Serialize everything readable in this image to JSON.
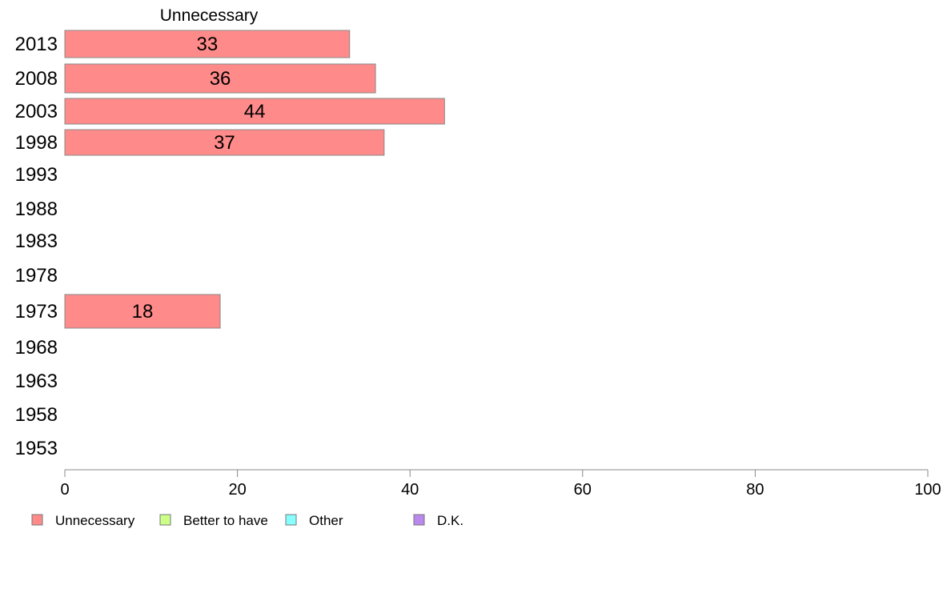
{
  "chart_data": {
    "type": "bar",
    "orientation": "horizontal",
    "title": "Unnecessary",
    "categories": [
      "2013",
      "2008",
      "2003",
      "1998",
      "1993",
      "1988",
      "1983",
      "1978",
      "1973",
      "1968",
      "1963",
      "1958",
      "1953"
    ],
    "series": [
      {
        "name": "Unnecessary",
        "color": "#FF8A8A",
        "values": [
          33,
          36,
          44,
          37,
          null,
          null,
          null,
          null,
          18,
          null,
          null,
          null,
          null
        ]
      }
    ],
    "xlim": [
      0,
      100
    ],
    "xticks": [
      "0",
      "20",
      "40",
      "60",
      "80",
      "100"
    ],
    "grid": false,
    "legend": {
      "position": "bottom-left",
      "items": [
        {
          "label": "Unnecessary",
          "color": "#FF8A8A"
        },
        {
          "label": "Better to have",
          "color": "#CCFF88"
        },
        {
          "label": "Other",
          "color": "#88FFFF"
        },
        {
          "label": "D.K.",
          "color": "#BB88EE"
        }
      ]
    }
  }
}
